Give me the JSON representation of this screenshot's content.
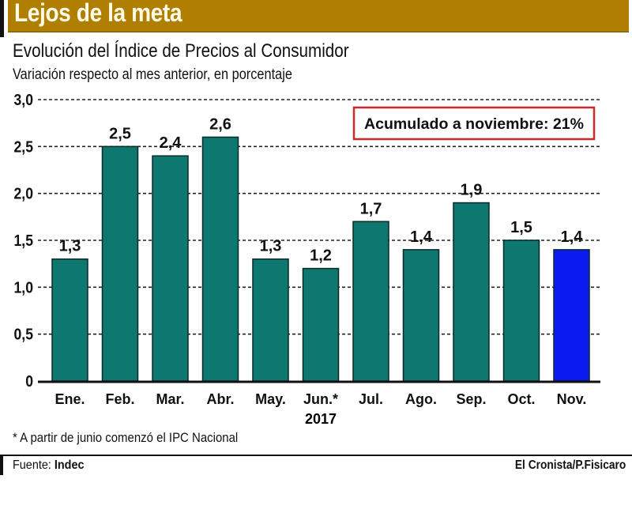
{
  "header": {
    "title": "Lejos de la meta",
    "band_color": "#b07e00"
  },
  "chart_data": {
    "type": "bar",
    "title": "Evolución del Índice de Precios al Consumidor",
    "subtitle": "Variación respecto al mes anterior, en porcentaje",
    "xlabel": "2017",
    "ylabel": "",
    "categories": [
      "Ene.",
      "Feb.",
      "Mar.",
      "Abr.",
      "May.",
      "Jun.*",
      "Jul.",
      "Ago.",
      "Sep.",
      "Oct.",
      "Nov."
    ],
    "values": [
      1.3,
      2.5,
      2.4,
      2.6,
      1.3,
      1.2,
      1.7,
      1.4,
      1.9,
      1.5,
      1.4
    ],
    "value_labels": [
      "1,3",
      "2,5",
      "2,4",
      "2,6",
      "1,3",
      "1,2",
      "1,7",
      "1,4",
      "1,9",
      "1,5",
      "1,4"
    ],
    "highlight_index": 10,
    "ylim": [
      0,
      3.0
    ],
    "yticks": [
      0,
      0.5,
      1.0,
      1.5,
      2.0,
      2.5,
      3.0
    ],
    "ytick_labels": [
      "0",
      "0,5",
      "1,0",
      "1,5",
      "2,0",
      "2,5",
      "3,0"
    ],
    "grid": true,
    "bar_color": "#0e7770",
    "highlight_color": "#0b1af0",
    "annotation": {
      "text": "Acumulado a noviembre: 21%",
      "position": "top-right",
      "border_color": "#cc2a2a"
    }
  },
  "footnote": "* A partir de junio comenzó el IPC Nacional",
  "footer": {
    "source_label": "Fuente:",
    "source_value": "Indec",
    "credit": "El Cronista/P.Fisicaro"
  }
}
